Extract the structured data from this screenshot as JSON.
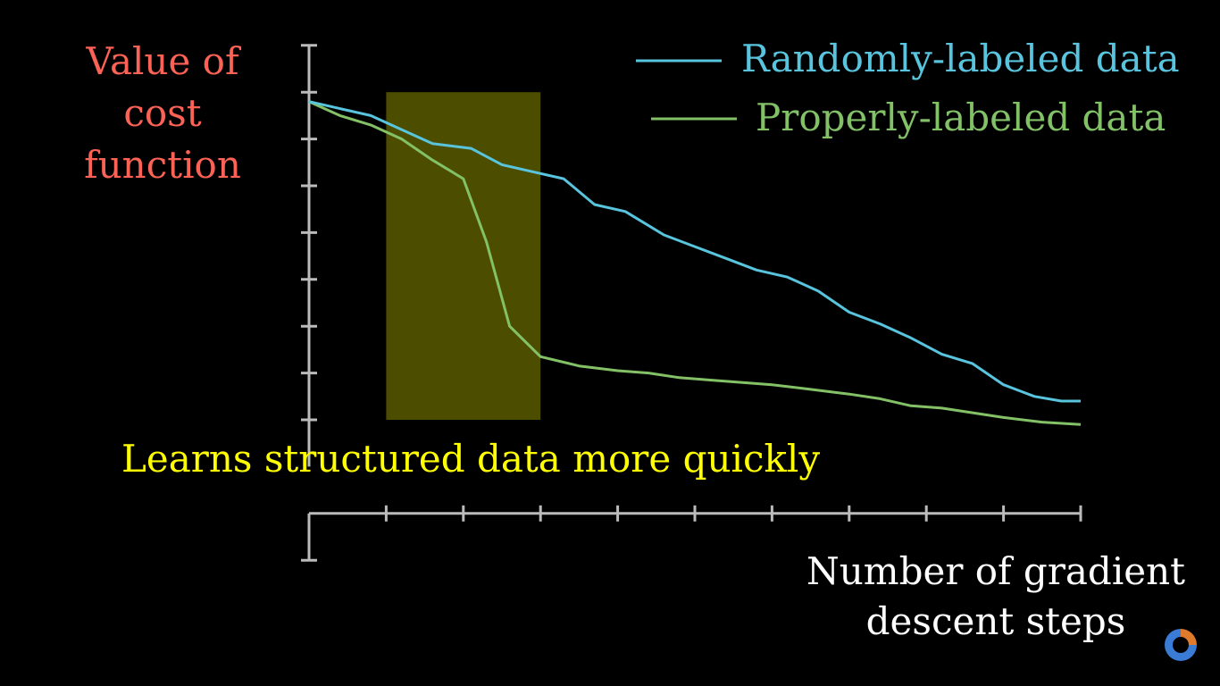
{
  "chart_data": {
    "type": "line",
    "ylabel": [
      "Value of",
      "cost function"
    ],
    "xlabel": [
      "Number of gradient",
      "descent steps"
    ],
    "annotation": "Learns structured data more quickly",
    "highlight": {
      "x_range": [
        1,
        3
      ],
      "y_range": [
        0,
        7
      ],
      "color": "#ffff00"
    },
    "xlim": [
      0,
      10
    ],
    "ylim": [
      -1,
      8
    ],
    "x_ticks": [
      1,
      2,
      3,
      4,
      5,
      6,
      7,
      8,
      9,
      10
    ],
    "y_ticks": [
      0,
      1,
      2,
      3,
      4,
      5,
      6,
      7
    ],
    "grid": false,
    "legend_position": "top-right",
    "series": [
      {
        "name": "Randomly-labeled data",
        "color": "#58c4dd",
        "x": [
          0,
          0.8,
          1.2,
          1.6,
          2.1,
          2.5,
          2.9,
          3.3,
          3.7,
          4.1,
          4.6,
          5.0,
          5.4,
          5.8,
          6.2,
          6.6,
          7.0,
          7.4,
          7.8,
          8.2,
          8.6,
          9.0,
          9.4,
          9.75,
          10
        ],
        "y": [
          6.8,
          6.5,
          6.2,
          5.9,
          5.8,
          5.45,
          5.3,
          5.15,
          4.6,
          4.45,
          3.95,
          3.7,
          3.45,
          3.2,
          3.05,
          2.75,
          2.3,
          2.05,
          1.75,
          1.4,
          1.2,
          0.75,
          0.5,
          0.4,
          0.4
        ]
      },
      {
        "name": "Properly-labeled data",
        "color": "#83c167",
        "x": [
          0,
          0.4,
          0.8,
          1.2,
          1.6,
          2.0,
          2.3,
          2.6,
          3.0,
          3.5,
          4.0,
          4.4,
          4.8,
          5.2,
          5.6,
          6.0,
          6.5,
          7.0,
          7.4,
          7.8,
          8.2,
          8.6,
          9.0,
          9.5,
          10
        ],
        "y": [
          6.8,
          6.5,
          6.3,
          6.0,
          5.55,
          5.15,
          3.8,
          2.0,
          1.35,
          1.15,
          1.05,
          1.0,
          0.9,
          0.85,
          0.8,
          0.75,
          0.65,
          0.55,
          0.45,
          0.3,
          0.25,
          0.15,
          0.05,
          -0.05,
          -0.1
        ]
      }
    ]
  }
}
